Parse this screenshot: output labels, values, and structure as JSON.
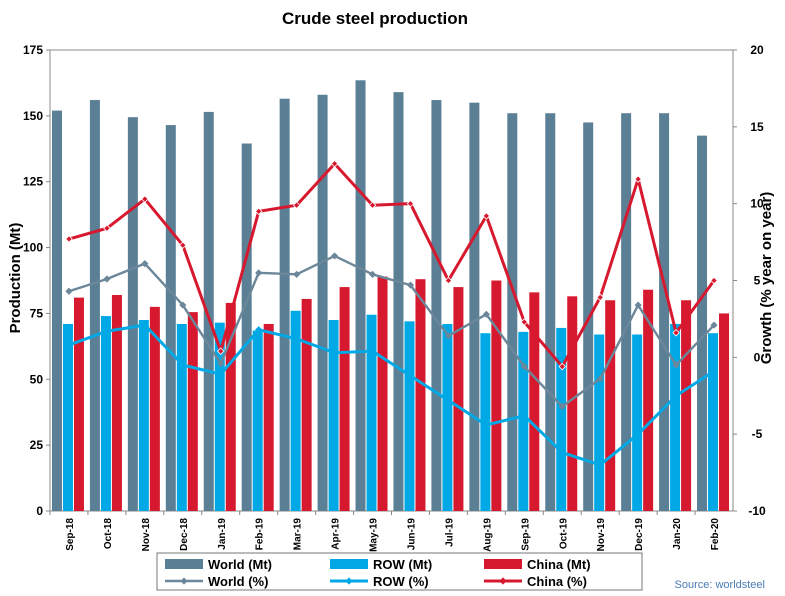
{
  "chart_data": {
    "type": "bar",
    "title": "Crude steel production",
    "ylabel": "Production (Mt)",
    "y2label": "Growth (% year on year)",
    "ylim": [
      0,
      175
    ],
    "y2lim": [
      -10,
      20
    ],
    "yticks": [
      "0",
      "25",
      "50",
      "75",
      "100",
      "125",
      "150",
      "175"
    ],
    "y2ticks": [
      "-10",
      "-5",
      "0",
      "5",
      "10",
      "15",
      "20"
    ],
    "grid": false,
    "legend_position": "bottom",
    "source": "Source: worldsteel",
    "categories": [
      "Sep-18",
      "Oct-18",
      "Nov-18",
      "Dec-18",
      "Jan-19",
      "Feb-19",
      "Mar-19",
      "Apr-19",
      "May-19",
      "Jun-19",
      "Jul-19",
      "Aug-19",
      "Sep-19",
      "Oct-19",
      "Nov-19",
      "Dec-19",
      "Jan-20",
      "Feb-20"
    ],
    "bar_series": [
      {
        "name": "World (Mt)",
        "color": "#5b7f95",
        "values": [
          152,
          156,
          149.5,
          146.5,
          151.5,
          139.5,
          156.5,
          158,
          163.5,
          159,
          156,
          155,
          151,
          151,
          147.5,
          151,
          151,
          142.5
        ]
      },
      {
        "name": "ROW (Mt)",
        "color": "#00a9e6",
        "values": [
          71,
          74,
          72.5,
          71,
          71.5,
          68.5,
          76,
          72.5,
          74.5,
          72,
          71,
          67.5,
          68,
          69.5,
          67,
          67,
          71,
          67.5
        ]
      },
      {
        "name": "China (Mt)",
        "color": "#d7192f",
        "values": [
          81,
          82,
          77.5,
          75.5,
          79,
          71,
          80.5,
          85,
          89,
          88,
          85,
          87.5,
          83,
          81.5,
          80,
          84,
          80,
          75
        ]
      }
    ],
    "line_series": [
      {
        "name": "World (%)",
        "color": "#6b8799",
        "values": [
          4.3,
          5.1,
          6.1,
          3.4,
          -0.4,
          5.5,
          5.4,
          6.6,
          5.4,
          4.7,
          1.4,
          2.8,
          -0.6,
          -3.2,
          -1.4,
          3.4,
          -0.5,
          2.1
        ]
      },
      {
        "name": "ROW (%)",
        "color": "#00a9e6",
        "values": [
          0.8,
          1.7,
          2.1,
          -0.5,
          -1.1,
          1.8,
          1.2,
          0.3,
          0.4,
          -1.2,
          -2.8,
          -4.4,
          -3.8,
          -6.2,
          -7.0,
          -5.0,
          -2.5,
          -0.9
        ]
      },
      {
        "name": "China (%)",
        "color": "#d7192f",
        "values": [
          7.7,
          8.4,
          10.3,
          7.3,
          0.4,
          9.5,
          9.9,
          12.6,
          9.9,
          10.0,
          5.0,
          9.2,
          2.3,
          -0.6,
          3.9,
          11.6,
          1.6,
          5.0
        ]
      }
    ]
  }
}
